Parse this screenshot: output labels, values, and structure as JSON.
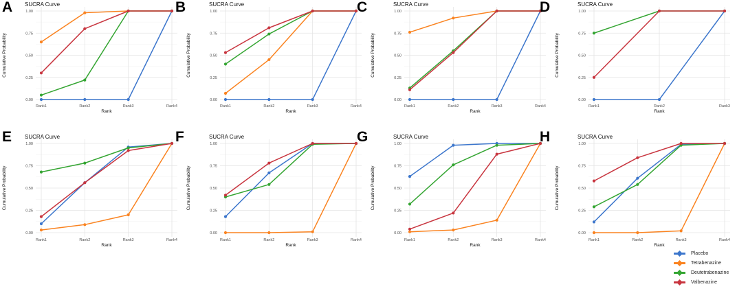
{
  "figure": {
    "background": "#ffffff"
  },
  "axes": {
    "y_ticks": [
      "0.00",
      "0.25",
      "0.50",
      "0.75",
      "1.00"
    ],
    "grid_major": "#e4e4e4",
    "grid_minor": "#f2f2f2"
  },
  "legend": {
    "items": [
      {
        "label": "Placebo",
        "color": "#3c76cc"
      },
      {
        "label": "Tetrabenazine",
        "color": "#fa8320"
      },
      {
        "label": "Deutetrabenazine",
        "color": "#34a532"
      },
      {
        "label": "Valbenazine",
        "color": "#c8353f"
      }
    ]
  },
  "chart_data": [
    {
      "type": "line",
      "panel": "A",
      "title": "SUCRA Curve",
      "xlabel": "Rank",
      "ylabel": "Cumulative Probability",
      "ylim": [
        0,
        1
      ],
      "categories": [
        "Rank1",
        "Rank2",
        "Rank3",
        "Rank4"
      ],
      "series": [
        {
          "name": "Placebo",
          "color": "#3c76cc",
          "values": [
            0.0,
            0.0,
            0.0,
            1.0
          ]
        },
        {
          "name": "Tetrabenazine",
          "color": "#fa8320",
          "values": [
            0.65,
            0.98,
            1.0,
            1.0
          ]
        },
        {
          "name": "Deutetrabenazine",
          "color": "#34a532",
          "values": [
            0.05,
            0.22,
            1.0,
            1.0
          ]
        },
        {
          "name": "Valbenazine",
          "color": "#c8353f",
          "values": [
            0.3,
            0.8,
            1.0,
            1.0
          ]
        }
      ]
    },
    {
      "type": "line",
      "panel": "B",
      "title": "SUCRA Curve",
      "xlabel": "Rank",
      "ylabel": "Cumulative Probability",
      "ylim": [
        0,
        1
      ],
      "categories": [
        "Rank1",
        "Rank2",
        "Rank3",
        "Rank4"
      ],
      "series": [
        {
          "name": "Placebo",
          "color": "#3c76cc",
          "values": [
            0.0,
            0.0,
            0.0,
            1.0
          ]
        },
        {
          "name": "Tetrabenazine",
          "color": "#fa8320",
          "values": [
            0.07,
            0.45,
            1.0,
            1.0
          ]
        },
        {
          "name": "Deutetrabenazine",
          "color": "#34a532",
          "values": [
            0.4,
            0.74,
            1.0,
            1.0
          ]
        },
        {
          "name": "Valbenazine",
          "color": "#c8353f",
          "values": [
            0.53,
            0.81,
            1.0,
            1.0
          ]
        }
      ]
    },
    {
      "type": "line",
      "panel": "C",
      "title": "SUCRA Curve",
      "xlabel": "Rank",
      "ylabel": "Cumulative Probability",
      "ylim": [
        0,
        1
      ],
      "categories": [
        "Rank1",
        "Rank2",
        "Rank3",
        "Rank4"
      ],
      "series": [
        {
          "name": "Placebo",
          "color": "#3c76cc",
          "values": [
            0.0,
            0.0,
            0.0,
            1.0
          ]
        },
        {
          "name": "Tetrabenazine",
          "color": "#fa8320",
          "values": [
            0.76,
            0.92,
            1.0,
            1.0
          ]
        },
        {
          "name": "Deutetrabenazine",
          "color": "#34a532",
          "values": [
            0.13,
            0.55,
            1.0,
            1.0
          ]
        },
        {
          "name": "Valbenazine",
          "color": "#c8353f",
          "values": [
            0.11,
            0.53,
            1.0,
            1.0
          ]
        }
      ]
    },
    {
      "type": "line",
      "panel": "D",
      "title": "SUCRA Curve",
      "xlabel": "Rank",
      "ylabel": "Cumulative Probability",
      "ylim": [
        0,
        1
      ],
      "categories": [
        "Rank1",
        "Rank2",
        "Rank3"
      ],
      "series": [
        {
          "name": "Placebo",
          "color": "#3c76cc",
          "values": [
            0.0,
            0.0,
            1.0
          ]
        },
        {
          "name": "Deutetrabenazine",
          "color": "#34a532",
          "values": [
            0.75,
            1.0,
            1.0
          ]
        },
        {
          "name": "Valbenazine",
          "color": "#c8353f",
          "values": [
            0.25,
            1.0,
            1.0
          ]
        }
      ]
    },
    {
      "type": "line",
      "panel": "E",
      "title": "SUCRA Curve",
      "xlabel": "Rank",
      "ylabel": "Cumulative Probability",
      "ylim": [
        0,
        1
      ],
      "categories": [
        "Rank1",
        "Rank2",
        "Rank3",
        "Rank4"
      ],
      "series": [
        {
          "name": "Placebo",
          "color": "#3c76cc",
          "values": [
            0.1,
            0.56,
            0.96,
            1.0
          ]
        },
        {
          "name": "Tetrabenazine",
          "color": "#fa8320",
          "values": [
            0.03,
            0.09,
            0.2,
            1.0
          ]
        },
        {
          "name": "Deutetrabenazine",
          "color": "#34a532",
          "values": [
            0.68,
            0.78,
            0.95,
            1.0
          ]
        },
        {
          "name": "Valbenazine",
          "color": "#c8353f",
          "values": [
            0.18,
            0.56,
            0.92,
            1.0
          ]
        }
      ]
    },
    {
      "type": "line",
      "panel": "F",
      "title": "SUCRA Curve",
      "xlabel": "Rank",
      "ylabel": "Cumulative Probability",
      "ylim": [
        0,
        1
      ],
      "categories": [
        "Rank1",
        "Rank2",
        "Rank3",
        "Rank4"
      ],
      "series": [
        {
          "name": "Placebo",
          "color": "#3c76cc",
          "values": [
            0.18,
            0.67,
            1.0,
            1.0
          ]
        },
        {
          "name": "Tetrabenazine",
          "color": "#fa8320",
          "values": [
            0.0,
            0.0,
            0.01,
            1.0
          ]
        },
        {
          "name": "Deutetrabenazine",
          "color": "#34a532",
          "values": [
            0.4,
            0.54,
            0.99,
            1.0
          ]
        },
        {
          "name": "Valbenazine",
          "color": "#c8353f",
          "values": [
            0.42,
            0.78,
            1.0,
            1.0
          ]
        }
      ]
    },
    {
      "type": "line",
      "panel": "G",
      "title": "SUCRA Curve",
      "xlabel": "Rank",
      "ylabel": "Cumulative Probability",
      "ylim": [
        0,
        1
      ],
      "categories": [
        "Rank1",
        "Rank2",
        "Rank3",
        "Rank4"
      ],
      "series": [
        {
          "name": "Placebo",
          "color": "#3c76cc",
          "values": [
            0.63,
            0.98,
            1.0,
            1.0
          ]
        },
        {
          "name": "Tetrabenazine",
          "color": "#fa8320",
          "values": [
            0.01,
            0.03,
            0.14,
            1.0
          ]
        },
        {
          "name": "Deutetrabenazine",
          "color": "#34a532",
          "values": [
            0.32,
            0.76,
            0.98,
            1.0
          ]
        },
        {
          "name": "Valbenazine",
          "color": "#c8353f",
          "values": [
            0.04,
            0.22,
            0.88,
            1.0
          ]
        }
      ]
    },
    {
      "type": "line",
      "panel": "H",
      "title": "SUCRA Curve",
      "xlabel": "Rank",
      "ylabel": "Cumulative Probability",
      "ylim": [
        0,
        1
      ],
      "categories": [
        "Rank1",
        "Rank2",
        "Rank3",
        "Rank4"
      ],
      "series": [
        {
          "name": "Placebo",
          "color": "#3c76cc",
          "values": [
            0.12,
            0.61,
            0.99,
            1.0
          ]
        },
        {
          "name": "Tetrabenazine",
          "color": "#fa8320",
          "values": [
            0.0,
            0.0,
            0.02,
            1.0
          ]
        },
        {
          "name": "Deutetrabenazine",
          "color": "#34a532",
          "values": [
            0.29,
            0.54,
            0.98,
            1.0
          ]
        },
        {
          "name": "Valbenazine",
          "color": "#c8353f",
          "values": [
            0.58,
            0.84,
            1.0,
            1.0
          ]
        }
      ]
    }
  ]
}
